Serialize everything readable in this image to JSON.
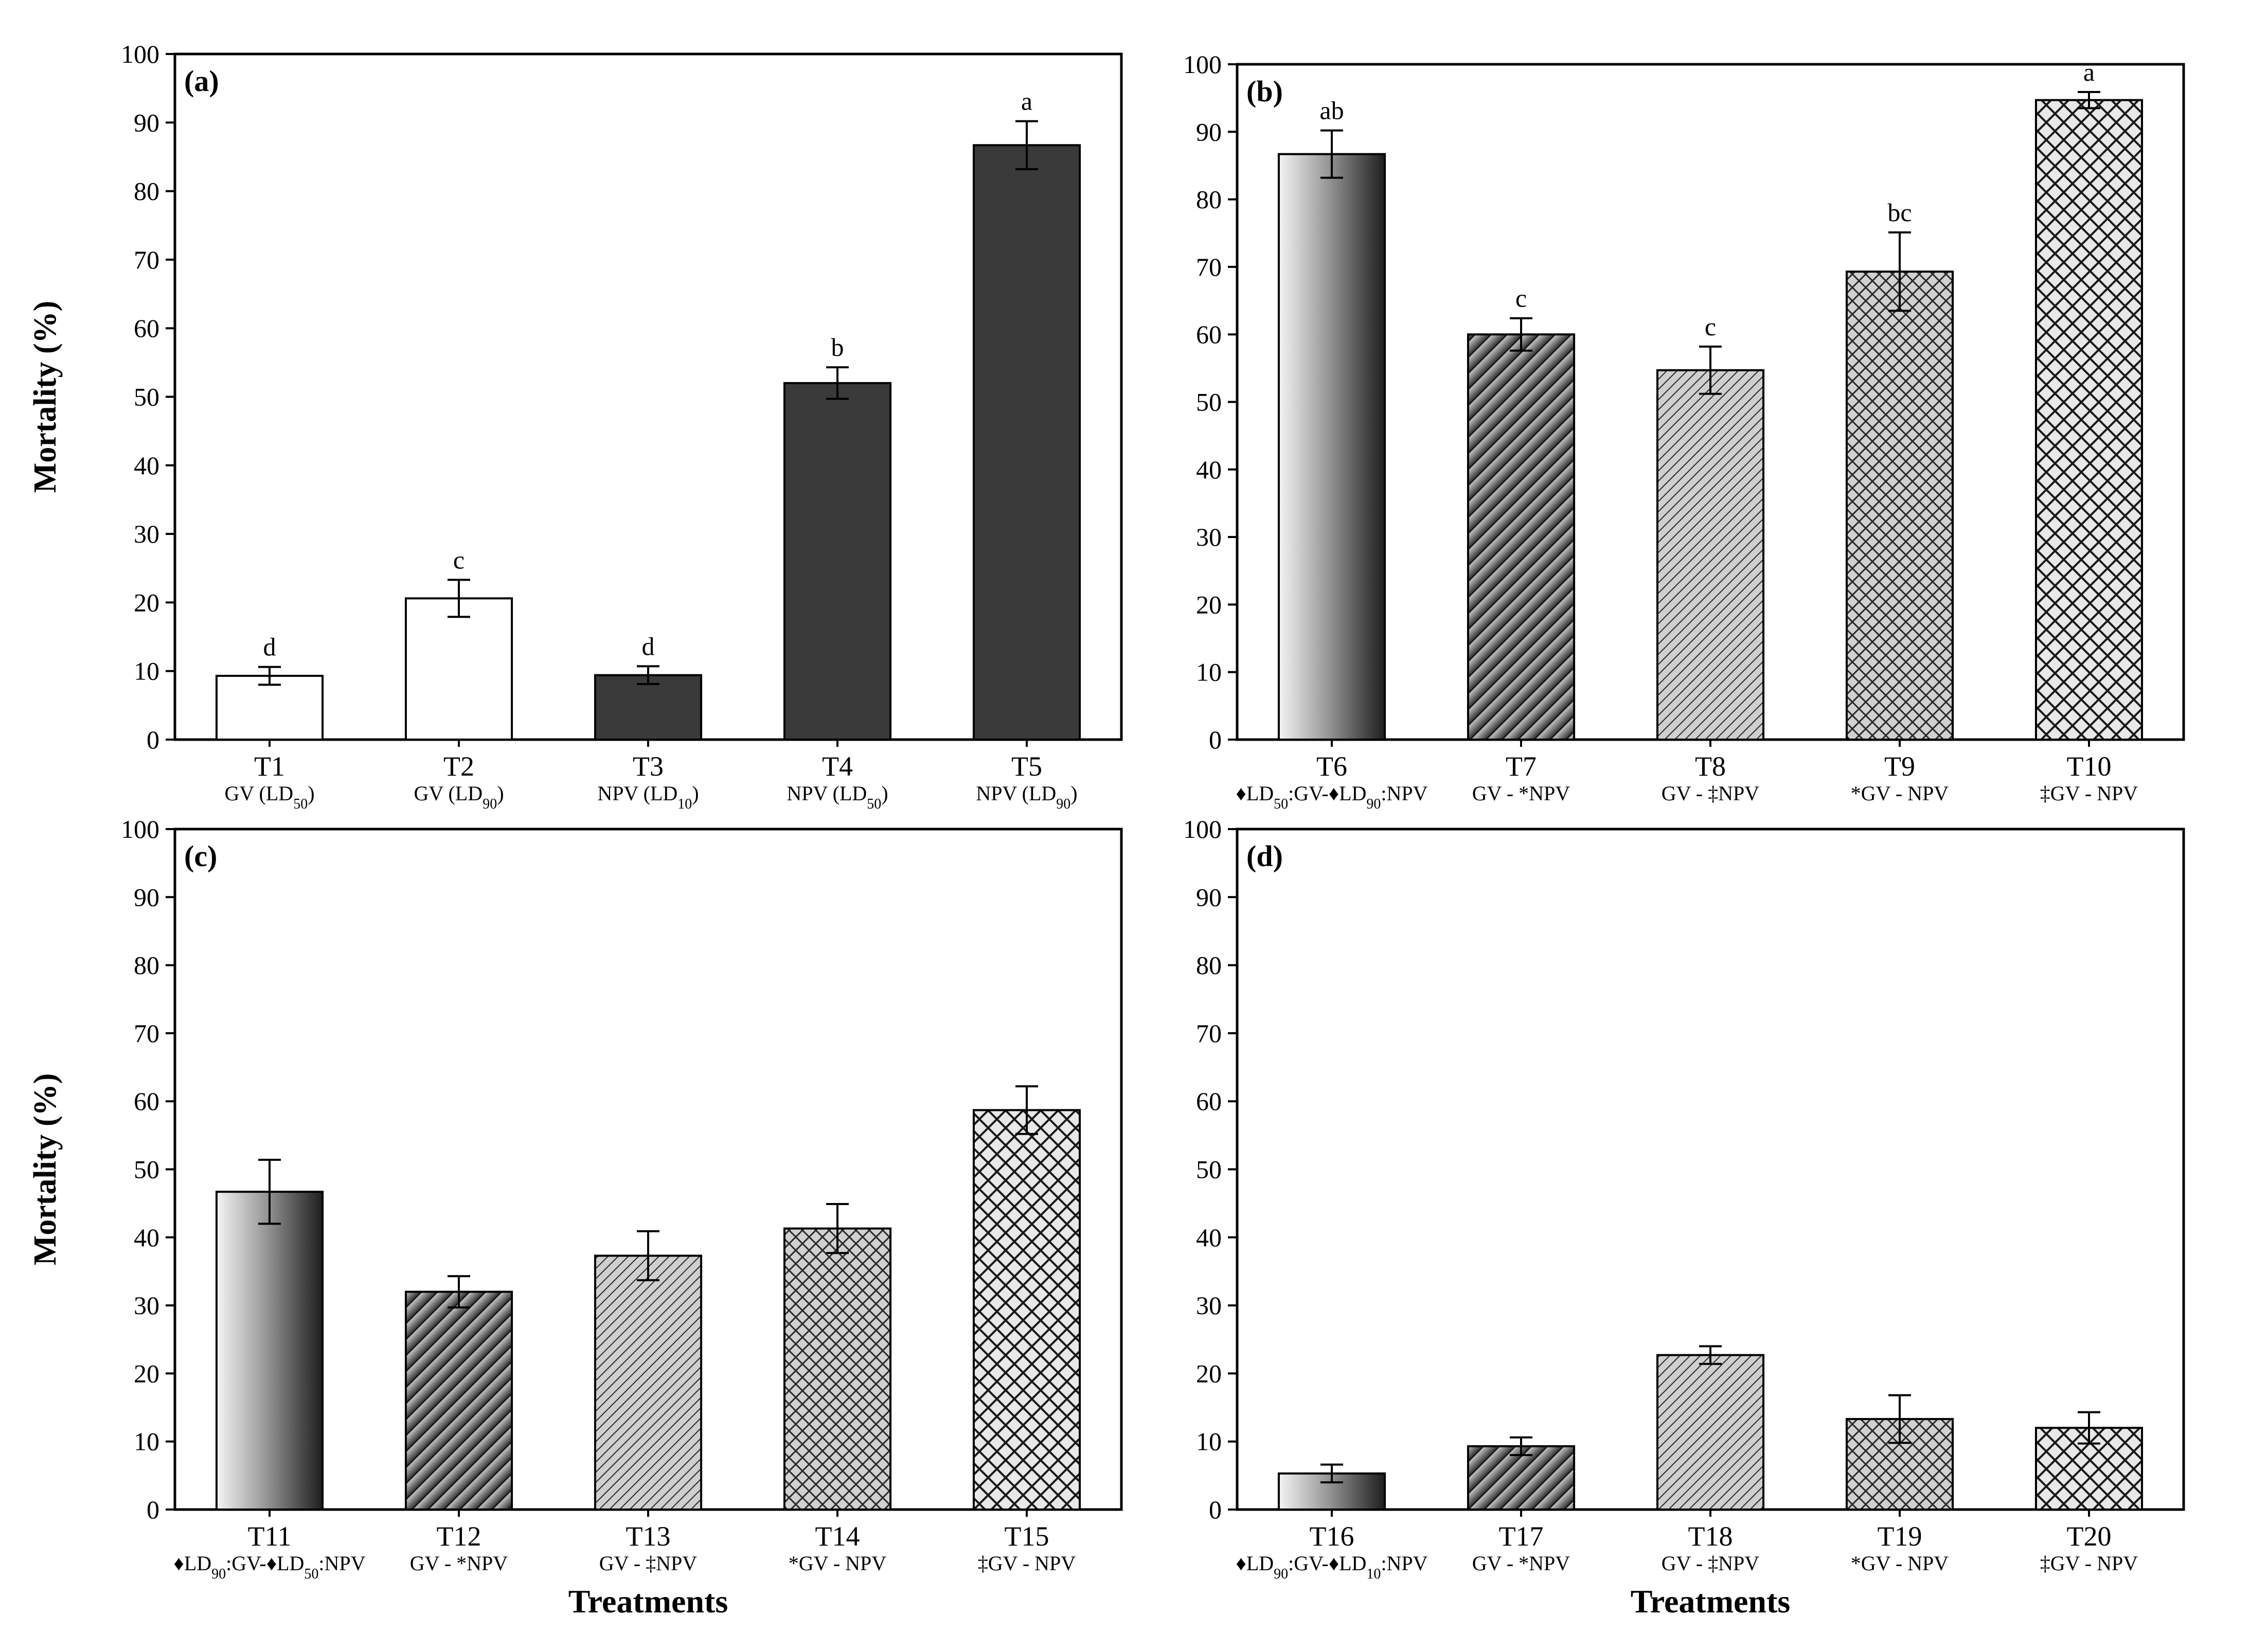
{
  "chart_data": [
    {
      "type": "bar",
      "panel_label": "(a)",
      "ylabel": "Mortality (%)",
      "xlabel": "",
      "ylim": [
        0,
        100
      ],
      "yticks": [
        "0",
        "10",
        "20",
        "30",
        "40",
        "50",
        "60",
        "70",
        "80",
        "90",
        "100"
      ],
      "categories": [
        "T1",
        "T2",
        "T3",
        "T4",
        "T5"
      ],
      "sublabels": [
        {
          "text": "GV (LD",
          "sub": "50",
          "post": ")"
        },
        {
          "text": "GV (LD",
          "sub": "90",
          "post": ")"
        },
        {
          "text": "NPV (LD",
          "sub": "10",
          "post": ")"
        },
        {
          "text": "NPV (LD",
          "sub": "50",
          "post": ")"
        },
        {
          "text": "NPV (LD",
          "sub": "90",
          "post": ")"
        }
      ],
      "values": [
        9.3,
        20.6,
        9.4,
        52.0,
        86.7
      ],
      "errors": [
        1.3,
        2.7,
        1.3,
        2.3,
        3.5
      ],
      "letters": [
        "d",
        "c",
        "d",
        "b",
        "a"
      ],
      "fills": [
        "white",
        "white",
        "dark",
        "dark",
        "dark"
      ]
    },
    {
      "type": "bar",
      "panel_label": "(b)",
      "ylabel": "",
      "xlabel": "",
      "ylim": [
        0,
        100
      ],
      "yticks": [
        "0",
        "10",
        "20",
        "30",
        "40",
        "50",
        "60",
        "70",
        "80",
        "90",
        "100"
      ],
      "categories": [
        "T6",
        "T7",
        "T8",
        "T9",
        "T10"
      ],
      "sublabels": [
        {
          "text": "♦LD",
          "sub": "50",
          "post": ":GV-♦LD",
          "sub2": "90",
          "post2": ":NPV"
        },
        {
          "text": "GV - *NPV"
        },
        {
          "text": "GV - ‡NPV"
        },
        {
          "text": "*GV - NPV"
        },
        {
          "text": "‡GV - NPV"
        }
      ],
      "values": [
        86.7,
        60.0,
        54.7,
        69.3,
        94.7
      ],
      "errors": [
        3.5,
        2.4,
        3.5,
        5.8,
        1.2
      ],
      "letters": [
        "ab",
        "c",
        "c",
        "bc",
        "a"
      ],
      "fills": [
        "grad",
        "diag",
        "diagfine",
        "cross",
        "crossfine"
      ]
    },
    {
      "type": "bar",
      "panel_label": "(c)",
      "ylabel": "Mortality (%)",
      "xlabel": "Treatments",
      "ylim": [
        0,
        100
      ],
      "yticks": [
        "0",
        "10",
        "20",
        "30",
        "40",
        "50",
        "60",
        "70",
        "80",
        "90",
        "100"
      ],
      "categories": [
        "T11",
        "T12",
        "T13",
        "T14",
        "T15"
      ],
      "sublabels": [
        {
          "text": "♦LD",
          "sub": "90",
          "post": ":GV-♦LD",
          "sub2": "50",
          "post2": ":NPV"
        },
        {
          "text": "GV - *NPV"
        },
        {
          "text": "GV - ‡NPV"
        },
        {
          "text": "*GV - NPV"
        },
        {
          "text": "‡GV - NPV"
        }
      ],
      "values": [
        46.7,
        32.0,
        37.3,
        41.3,
        58.7
      ],
      "errors": [
        4.7,
        2.3,
        3.6,
        3.6,
        3.5
      ],
      "letters": [
        "",
        "",
        "",
        "",
        ""
      ],
      "fills": [
        "grad",
        "diag",
        "diagfine",
        "cross",
        "crossfine"
      ]
    },
    {
      "type": "bar",
      "panel_label": "(d)",
      "ylabel": "",
      "xlabel": "Treatments",
      "ylim": [
        0,
        100
      ],
      "yticks": [
        "0",
        "10",
        "20",
        "30",
        "40",
        "50",
        "60",
        "70",
        "80",
        "90",
        "100"
      ],
      "categories": [
        "T16",
        "T17",
        "T18",
        "T19",
        "T20"
      ],
      "sublabels": [
        {
          "text": "♦LD",
          "sub": "90",
          "post": ":GV-♦LD",
          "sub2": "10",
          "post2": ":NPV"
        },
        {
          "text": "GV - *NPV"
        },
        {
          "text": "GV - ‡NPV"
        },
        {
          "text": "*GV - NPV"
        },
        {
          "text": "‡GV - NPV"
        }
      ],
      "values": [
        5.3,
        9.3,
        22.7,
        13.3,
        12.0
      ],
      "errors": [
        1.3,
        1.3,
        1.3,
        3.5,
        2.3
      ],
      "letters": [
        "",
        "",
        "",
        "",
        ""
      ],
      "fills": [
        "grad",
        "diag",
        "diagfine",
        "cross",
        "crossfine"
      ]
    }
  ],
  "colors": {
    "dark_bar": "#3a3a3a",
    "white_bar": "#ffffff",
    "axis": "#000000"
  }
}
